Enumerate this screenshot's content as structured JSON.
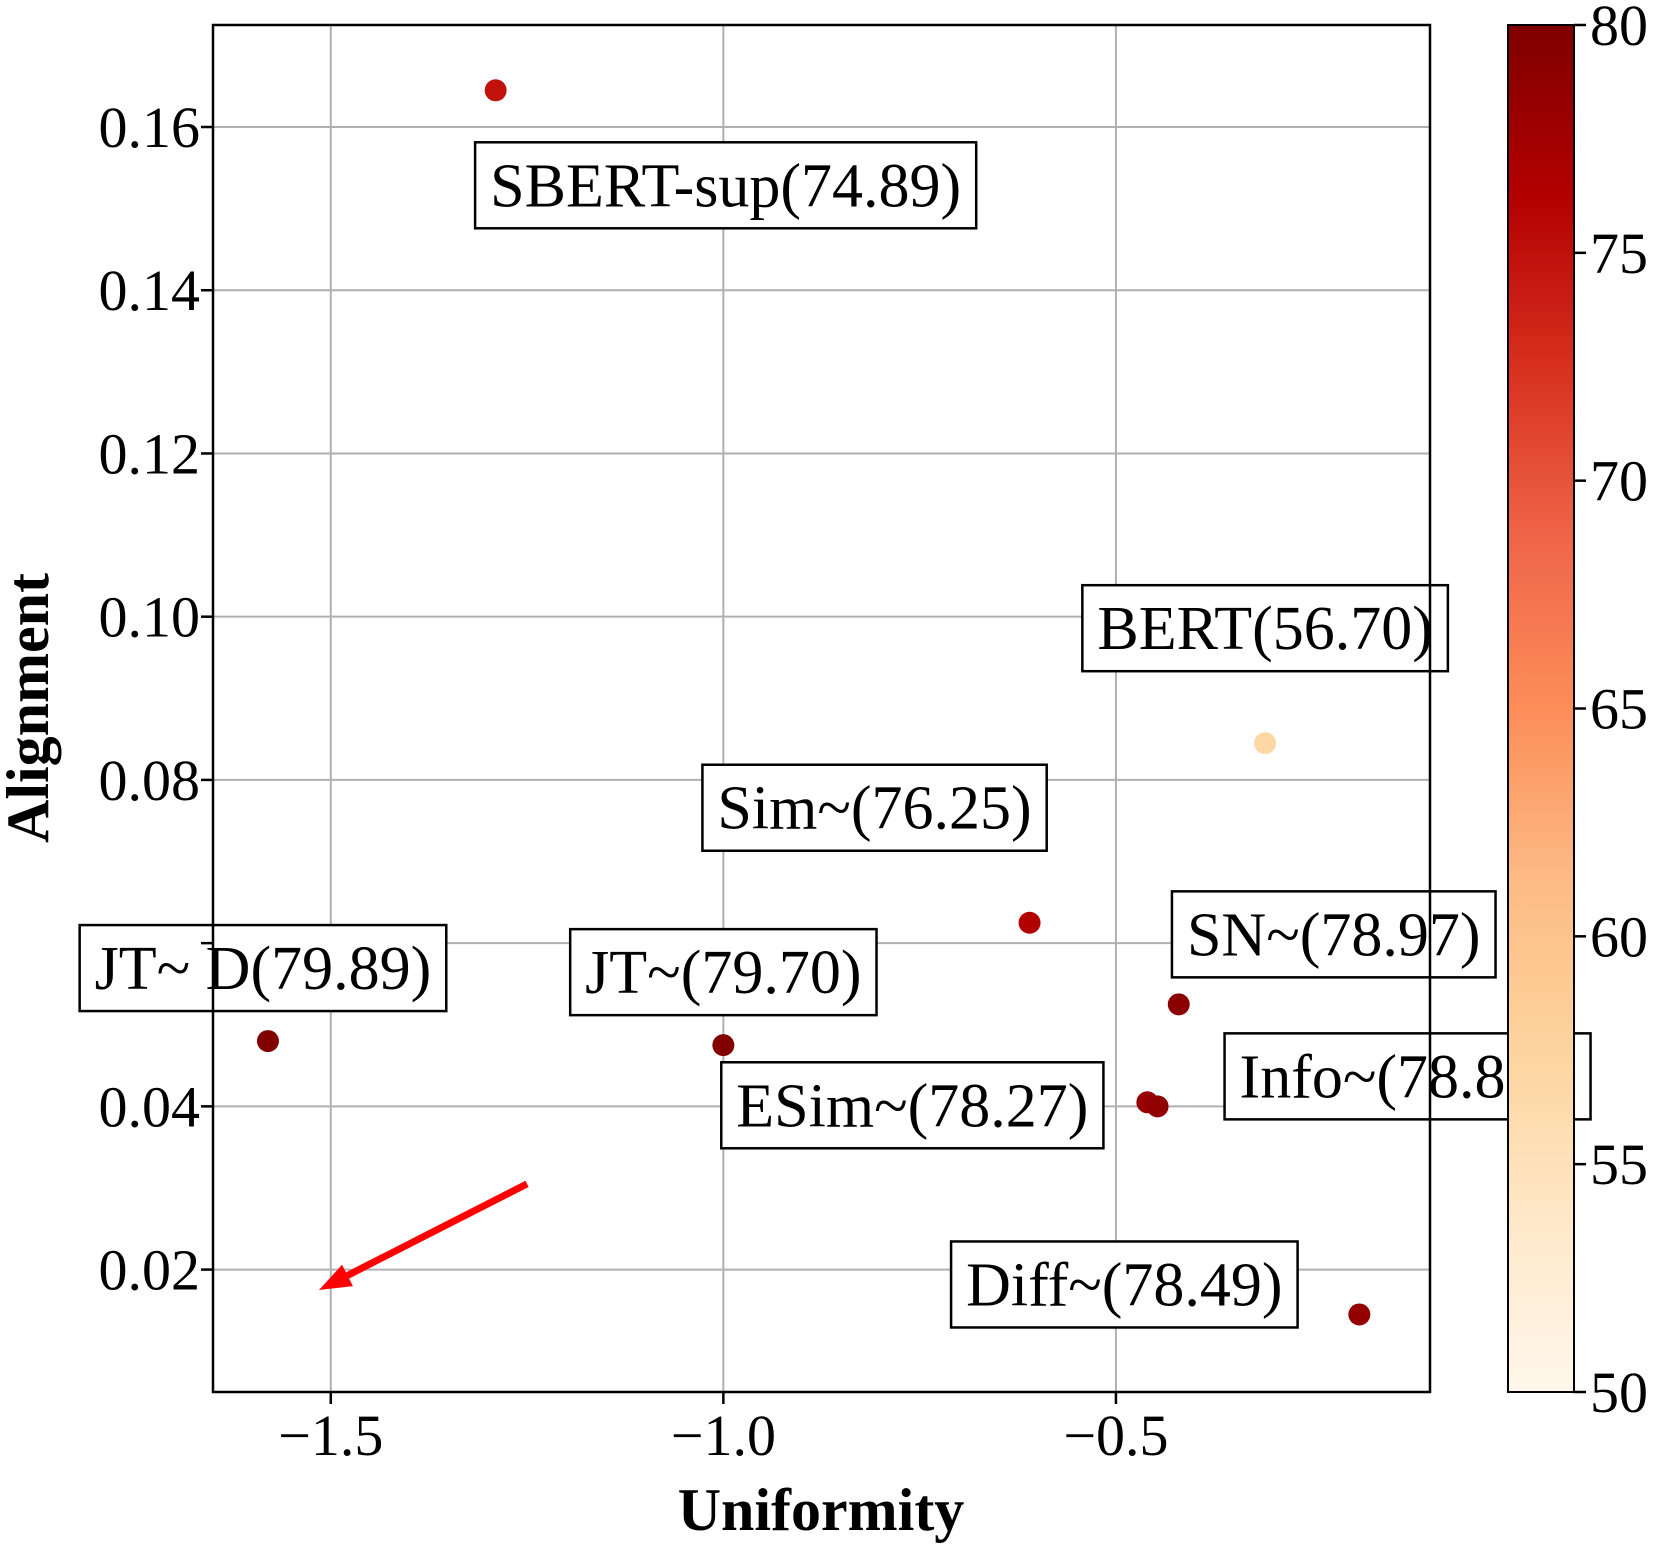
{
  "chart_data": {
    "type": "scatter",
    "xlabel": "Uniformity",
    "ylabel": "Alignment",
    "xlim": [
      -1.65,
      -0.1
    ],
    "ylim": [
      0.005,
      0.1725
    ],
    "grid": true,
    "x_ticks": [
      {
        "value": -1.5,
        "label": "−1.5"
      },
      {
        "value": -1.0,
        "label": "−1.0"
      },
      {
        "value": -0.5,
        "label": "−0.5"
      }
    ],
    "y_ticks": [
      {
        "value": 0.02,
        "label": "0.02"
      },
      {
        "value": 0.04,
        "label": "0.04"
      },
      {
        "value": 0.06,
        "label": ""
      },
      {
        "value": 0.08,
        "label": "0.08"
      },
      {
        "value": 0.1,
        "label": "0.10"
      },
      {
        "value": 0.12,
        "label": "0.12"
      },
      {
        "value": 0.14,
        "label": "0.14"
      },
      {
        "value": 0.16,
        "label": "0.16"
      }
    ],
    "colorbar": {
      "min": 50,
      "max": 80,
      "ticks": [
        "50",
        "55",
        "60",
        "65",
        "70",
        "75",
        "80"
      ],
      "colormap": [
        "#fff7ec",
        "#fee8c8",
        "#fdd49e",
        "#fdbb84",
        "#fc8d59",
        "#ef6548",
        "#d7301f",
        "#b30000",
        "#7f0000"
      ]
    },
    "points": [
      {
        "name": "SBERT-sup",
        "x": -1.29,
        "y": 0.1645,
        "score": 74.89,
        "label": "SBERT-sup(74.89)"
      },
      {
        "name": "BERT",
        "x": -0.31,
        "y": 0.0845,
        "score": 56.7,
        "label": "BERT(56.70)"
      },
      {
        "name": "Sim~",
        "x": -0.61,
        "y": 0.0625,
        "score": 76.25,
        "label": "Sim~(76.25)"
      },
      {
        "name": "SN~",
        "x": -0.42,
        "y": 0.0525,
        "score": 78.97,
        "label": "SN~(78.97)"
      },
      {
        "name": "JT~ D",
        "x": -1.58,
        "y": 0.048,
        "score": 79.89,
        "label": "JT~ D(79.89)"
      },
      {
        "name": "JT~",
        "x": -1.0,
        "y": 0.0475,
        "score": 79.7,
        "label": "JT~(79.70)"
      },
      {
        "name": "ESim~",
        "x": -0.46,
        "y": 0.0405,
        "score": 78.27,
        "label": "ESim~(78.27)"
      },
      {
        "name": "Info~",
        "x": -0.447,
        "y": 0.04,
        "score": 78.8,
        "label": "Info~(78.8"
      },
      {
        "name": "Diff~",
        "x": -0.19,
        "y": 0.0145,
        "score": 78.49,
        "label": "Diff~(78.49)"
      }
    ],
    "arrow": {
      "from": {
        "x": -1.25,
        "y": 0.0305
      },
      "to": {
        "x": -1.515,
        "y": 0.0175
      },
      "color": "#ff0000"
    }
  }
}
